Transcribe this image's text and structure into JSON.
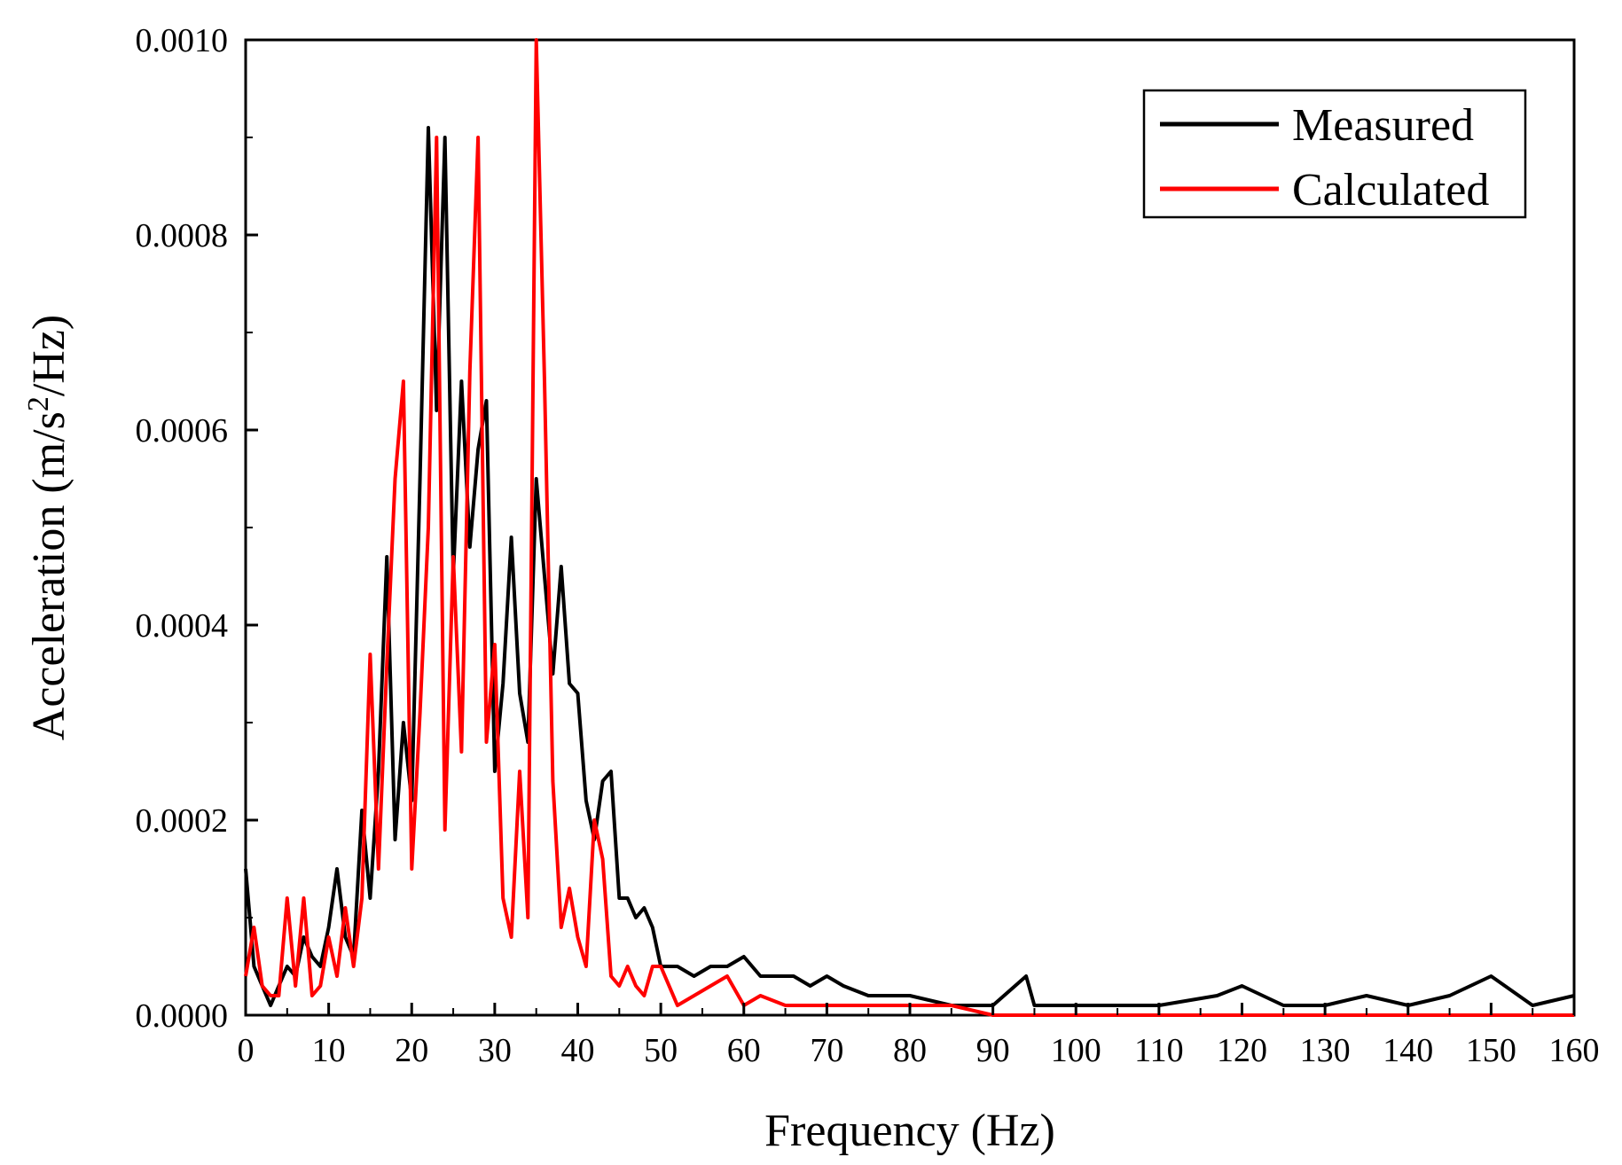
{
  "chart_data": {
    "type": "line",
    "title": "",
    "xlabel": "Frequency (Hz)",
    "ylabel_main": "Acceleration (m/s",
    "ylabel_sup": "2",
    "ylabel_tail": "/Hz)",
    "xlim": [
      0,
      160
    ],
    "ylim": [
      0,
      0.001
    ],
    "grid": false,
    "legend_position": "top-right",
    "x_ticks": [
      {
        "value": 0,
        "label": "0"
      },
      {
        "value": 10,
        "label": "10"
      },
      {
        "value": 20,
        "label": "20"
      },
      {
        "value": 30,
        "label": "30"
      },
      {
        "value": 40,
        "label": "40"
      },
      {
        "value": 50,
        "label": "50"
      },
      {
        "value": 60,
        "label": "60"
      },
      {
        "value": 70,
        "label": "70"
      },
      {
        "value": 80,
        "label": "80"
      },
      {
        "value": 90,
        "label": "90"
      },
      {
        "value": 100,
        "label": "100"
      },
      {
        "value": 110,
        "label": "110"
      },
      {
        "value": 120,
        "label": "120"
      },
      {
        "value": 130,
        "label": "130"
      },
      {
        "value": 140,
        "label": "140"
      },
      {
        "value": 150,
        "label": "150"
      },
      {
        "value": 160,
        "label": "160"
      }
    ],
    "y_ticks": [
      {
        "value": 0,
        "label": "0.0000"
      },
      {
        "value": 0.0002,
        "label": "0.0002"
      },
      {
        "value": 0.0004,
        "label": "0.0004"
      },
      {
        "value": 0.0006,
        "label": "0.0006"
      },
      {
        "value": 0.0008,
        "label": "0.0008"
      },
      {
        "value": 0.001,
        "label": "0.0010"
      }
    ],
    "series": [
      {
        "name": "Measured",
        "color": "#000000",
        "x": [
          0,
          1,
          2,
          3,
          4,
          5,
          6,
          7,
          8,
          9,
          10,
          11,
          12,
          13,
          14,
          15,
          16,
          17,
          18,
          19,
          20,
          21,
          22,
          23,
          24,
          25,
          26,
          27,
          28,
          29,
          30,
          31,
          32,
          33,
          34,
          35,
          36,
          37,
          38,
          39,
          40,
          41,
          42,
          43,
          44,
          45,
          46,
          47,
          48,
          49,
          50,
          52,
          54,
          56,
          58,
          60,
          62,
          64,
          66,
          68,
          70,
          72,
          75,
          80,
          85,
          90,
          94,
          95,
          100,
          110,
          117,
          120,
          125,
          130,
          135,
          140,
          145,
          150,
          155,
          160
        ],
        "y": [
          0.00015,
          5e-05,
          3e-05,
          1e-05,
          3e-05,
          5e-05,
          4e-05,
          8e-05,
          6e-05,
          5e-05,
          9e-05,
          0.00015,
          8e-05,
          6e-05,
          0.00021,
          0.00012,
          0.00025,
          0.00047,
          0.00018,
          0.0003,
          0.00022,
          0.00055,
          0.00091,
          0.00062,
          0.0009,
          0.00045,
          0.00065,
          0.00048,
          0.00058,
          0.00063,
          0.00025,
          0.00034,
          0.00049,
          0.00033,
          0.00028,
          0.00055,
          0.00045,
          0.00035,
          0.00046,
          0.00034,
          0.00033,
          0.00022,
          0.00018,
          0.00024,
          0.00025,
          0.00012,
          0.00012,
          0.0001,
          0.00011,
          9e-05,
          5e-05,
          5e-05,
          4e-05,
          5e-05,
          5e-05,
          6e-05,
          4e-05,
          4e-05,
          4e-05,
          3e-05,
          4e-05,
          3e-05,
          2e-05,
          2e-05,
          1e-05,
          1e-05,
          4e-05,
          1e-05,
          1e-05,
          1e-05,
          2e-05,
          3e-05,
          1e-05,
          1e-05,
          2e-05,
          1e-05,
          2e-05,
          4e-05,
          1e-05,
          2e-05
        ]
      },
      {
        "name": "Calculated",
        "color": "#ff0000",
        "x": [
          0,
          1,
          2,
          3,
          4,
          5,
          6,
          7,
          8,
          9,
          10,
          11,
          12,
          13,
          14,
          15,
          16,
          17,
          18,
          19,
          20,
          21,
          22,
          23,
          24,
          25,
          26,
          27,
          28,
          29,
          30,
          31,
          32,
          33,
          34,
          35,
          36,
          37,
          38,
          39,
          40,
          41,
          42,
          43,
          44,
          45,
          46,
          47,
          48,
          49,
          50,
          52,
          54,
          56,
          58,
          60,
          62,
          65,
          70,
          80,
          85,
          90,
          100,
          110,
          120,
          130,
          140,
          150,
          160
        ],
        "y": [
          4e-05,
          9e-05,
          3e-05,
          2e-05,
          2e-05,
          0.00012,
          3e-05,
          0.00012,
          2e-05,
          3e-05,
          8e-05,
          4e-05,
          0.00011,
          5e-05,
          0.00012,
          0.00037,
          0.00015,
          0.00036,
          0.00055,
          0.00065,
          0.00015,
          0.00031,
          0.0005,
          0.0009,
          0.00019,
          0.00047,
          0.00027,
          0.00066,
          0.0009,
          0.00028,
          0.00038,
          0.00012,
          8e-05,
          0.00025,
          0.0001,
          0.001,
          0.00065,
          0.00024,
          9e-05,
          0.00013,
          8e-05,
          5e-05,
          0.0002,
          0.00016,
          4e-05,
          3e-05,
          5e-05,
          3e-05,
          2e-05,
          5e-05,
          5e-05,
          1e-05,
          2e-05,
          3e-05,
          4e-05,
          1e-05,
          2e-05,
          1e-05,
          1e-05,
          1e-05,
          1e-05,
          0.0,
          0.0,
          0.0,
          0.0,
          0.0,
          0.0,
          0.0,
          0.0
        ]
      }
    ]
  }
}
